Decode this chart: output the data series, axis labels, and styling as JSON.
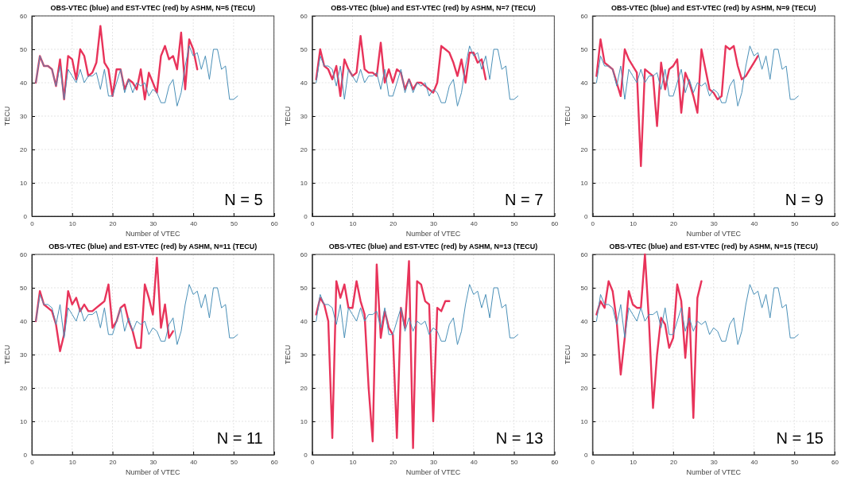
{
  "chart_data": [
    {
      "type": "line",
      "title": "OBS-VTEC (blue) and EST-VTEC (red) by ASHM, N=5 (TECU)",
      "xlabel": "Number of VTEC",
      "ylabel": "TECU",
      "xlim": [
        0,
        60
      ],
      "xticks": [
        0,
        10,
        20,
        30,
        40,
        50,
        60
      ],
      "ylim": [
        0,
        60
      ],
      "yticks": [
        0,
        10,
        20,
        30,
        40,
        50,
        60
      ],
      "grid": true,
      "line_style": "solid",
      "annotations": [
        "N = 5"
      ],
      "series": [
        {
          "color": "#4a90b8",
          "x": [
            1,
            2,
            3,
            4,
            5,
            6,
            7,
            8,
            9,
            10,
            11,
            12,
            13,
            14,
            15,
            16,
            17,
            18,
            19,
            20,
            21,
            22,
            23,
            24,
            25,
            26,
            27,
            28,
            29,
            30,
            31,
            32,
            33,
            34,
            35,
            36,
            37,
            38,
            39,
            40,
            41,
            42,
            43,
            44,
            45,
            46,
            47,
            48,
            49,
            50,
            51
          ],
          "values": [
            40,
            48,
            45,
            45,
            44,
            39,
            45,
            35,
            44,
            42,
            40,
            44,
            40,
            42,
            42,
            43,
            38,
            44,
            36,
            36,
            40,
            44,
            37,
            41,
            37,
            40,
            39,
            40,
            36,
            38,
            37,
            34,
            34,
            39,
            41,
            33,
            37,
            45,
            51,
            48,
            49,
            44,
            48,
            41,
            50,
            50,
            44,
            45,
            35,
            35,
            36
          ]
        },
        {
          "color": "#e8335a",
          "x": [
            1,
            2,
            3,
            4,
            5,
            6,
            7,
            8,
            9,
            10,
            11,
            12,
            13,
            14,
            15,
            16,
            17,
            18,
            19,
            20,
            21,
            22,
            23,
            24,
            25,
            26,
            27,
            28,
            29,
            30,
            31,
            32,
            33,
            34,
            35,
            36,
            37,
            38,
            39,
            40,
            41
          ],
          "values": [
            40,
            48,
            45,
            45,
            44,
            39,
            47,
            35,
            48,
            47,
            41,
            50,
            48,
            42,
            43,
            46,
            57,
            46,
            44,
            36,
            44,
            44,
            38,
            41,
            40,
            38,
            44,
            35,
            43,
            40,
            37,
            48,
            51,
            47,
            48,
            44,
            55,
            38,
            53,
            50,
            44
          ]
        }
      ]
    },
    {
      "type": "line",
      "title": "OBS-VTEC (blue) and EST-VTEC (red) by ASHM, N=7 (TECU)",
      "xlabel": "Number of VTEC",
      "ylabel": "TECU",
      "xlim": [
        0,
        60
      ],
      "xticks": [
        0,
        10,
        20,
        30,
        40,
        50,
        60
      ],
      "ylim": [
        0,
        60
      ],
      "yticks": [
        0,
        10,
        20,
        30,
        40,
        50,
        60
      ],
      "grid": true,
      "line_style": "solid",
      "annotations": [
        "N = 7"
      ],
      "series": [
        {
          "color": "#4a90b8",
          "x": [
            1,
            2,
            3,
            4,
            5,
            6,
            7,
            8,
            9,
            10,
            11,
            12,
            13,
            14,
            15,
            16,
            17,
            18,
            19,
            20,
            21,
            22,
            23,
            24,
            25,
            26,
            27,
            28,
            29,
            30,
            31,
            32,
            33,
            34,
            35,
            36,
            37,
            38,
            39,
            40,
            41,
            42,
            43,
            44,
            45,
            46,
            47,
            48,
            49,
            50,
            51
          ],
          "values": [
            40,
            48,
            45,
            45,
            44,
            39,
            45,
            35,
            44,
            42,
            40,
            44,
            40,
            42,
            42,
            43,
            38,
            44,
            36,
            36,
            40,
            44,
            37,
            41,
            37,
            40,
            39,
            40,
            36,
            38,
            37,
            34,
            34,
            39,
            41,
            33,
            37,
            45,
            51,
            48,
            49,
            44,
            48,
            41,
            50,
            50,
            44,
            45,
            35,
            35,
            36
          ]
        },
        {
          "color": "#e8335a",
          "x": [
            1,
            2,
            3,
            4,
            5,
            6,
            7,
            8,
            9,
            10,
            11,
            12,
            13,
            14,
            15,
            16,
            17,
            18,
            19,
            20,
            21,
            22,
            23,
            24,
            25,
            26,
            27,
            28,
            29,
            30,
            31,
            32,
            33,
            34,
            35,
            36,
            37,
            38,
            39,
            40,
            41,
            42,
            43
          ],
          "values": [
            41,
            50,
            45,
            44,
            41,
            45,
            36,
            47,
            44,
            42,
            43,
            54,
            44,
            43,
            43,
            42,
            52,
            40,
            44,
            40,
            44,
            43,
            38,
            41,
            38,
            40,
            40,
            39,
            38,
            37,
            40,
            51,
            50,
            49,
            46,
            42,
            47,
            40,
            49,
            49,
            46,
            47,
            41
          ]
        }
      ]
    },
    {
      "type": "line",
      "title": "OBS-VTEC (blue) and EST-VTEC (red) by ASHM, N=9 (TECU)",
      "xlabel": "Number of VTEC",
      "ylabel": "TECU",
      "xlim": [
        0,
        60
      ],
      "xticks": [
        0,
        10,
        20,
        30,
        40,
        50,
        60
      ],
      "ylim": [
        0,
        60
      ],
      "yticks": [
        0,
        10,
        20,
        30,
        40,
        50,
        60
      ],
      "grid": true,
      "line_style": "solid",
      "annotations": [
        "N = 9"
      ],
      "series": [
        {
          "color": "#4a90b8",
          "x": [
            1,
            2,
            3,
            4,
            5,
            6,
            7,
            8,
            9,
            10,
            11,
            12,
            13,
            14,
            15,
            16,
            17,
            18,
            19,
            20,
            21,
            22,
            23,
            24,
            25,
            26,
            27,
            28,
            29,
            30,
            31,
            32,
            33,
            34,
            35,
            36,
            37,
            38,
            39,
            40,
            41,
            42,
            43,
            44,
            45,
            46,
            47,
            48,
            49,
            50,
            51
          ],
          "values": [
            40,
            48,
            45,
            45,
            44,
            39,
            45,
            35,
            44,
            42,
            40,
            44,
            40,
            42,
            42,
            43,
            38,
            44,
            36,
            36,
            40,
            44,
            37,
            41,
            37,
            40,
            39,
            40,
            36,
            38,
            37,
            34,
            34,
            39,
            41,
            33,
            37,
            45,
            51,
            48,
            49,
            44,
            48,
            41,
            50,
            50,
            44,
            45,
            35,
            35,
            36
          ]
        },
        {
          "color": "#e8335a",
          "x": [
            1,
            2,
            3,
            4,
            5,
            6,
            7,
            8,
            9,
            10,
            11,
            12,
            13,
            14,
            15,
            16,
            17,
            18,
            19,
            20,
            21,
            22,
            23,
            24,
            25,
            26,
            27,
            28,
            29,
            30,
            31,
            32,
            33,
            34,
            35,
            36,
            37,
            38,
            39,
            40,
            41
          ],
          "values": [
            42,
            53,
            46,
            45,
            44,
            40,
            36,
            50,
            47,
            45,
            43,
            15,
            44,
            43,
            42,
            27,
            46,
            38,
            44,
            45,
            47,
            31,
            43,
            40,
            36,
            31,
            50,
            44,
            38,
            37,
            35,
            36,
            51,
            50,
            51,
            45,
            41,
            42,
            44,
            46,
            48
          ]
        }
      ]
    },
    {
      "type": "line",
      "title": "OBS-VTEC (blue) and EST-VTEC (red) by ASHM, N=11 (TECU)",
      "xlabel": "Number of VTEC",
      "ylabel": "TECU",
      "xlim": [
        0,
        60
      ],
      "xticks": [
        0,
        10,
        20,
        30,
        40,
        50,
        60
      ],
      "ylim": [
        0,
        60
      ],
      "yticks": [
        0,
        10,
        20,
        30,
        40,
        50,
        60
      ],
      "grid": true,
      "line_style": "solid",
      "annotations": [
        "N = 11"
      ],
      "series": [
        {
          "color": "#4a90b8",
          "x": [
            1,
            2,
            3,
            4,
            5,
            6,
            7,
            8,
            9,
            10,
            11,
            12,
            13,
            14,
            15,
            16,
            17,
            18,
            19,
            20,
            21,
            22,
            23,
            24,
            25,
            26,
            27,
            28,
            29,
            30,
            31,
            32,
            33,
            34,
            35,
            36,
            37,
            38,
            39,
            40,
            41,
            42,
            43,
            44,
            45,
            46,
            47,
            48,
            49,
            50,
            51
          ],
          "values": [
            40,
            48,
            45,
            45,
            44,
            39,
            45,
            35,
            44,
            42,
            40,
            44,
            40,
            42,
            42,
            43,
            38,
            44,
            36,
            36,
            40,
            44,
            37,
            41,
            37,
            40,
            39,
            40,
            36,
            38,
            37,
            34,
            34,
            39,
            41,
            33,
            37,
            45,
            51,
            48,
            49,
            44,
            48,
            41,
            50,
            50,
            44,
            45,
            35,
            35,
            36
          ]
        },
        {
          "color": "#e8335a",
          "x": [
            1,
            2,
            3,
            4,
            5,
            6,
            7,
            8,
            9,
            10,
            11,
            12,
            13,
            14,
            15,
            16,
            17,
            18,
            19,
            20,
            21,
            22,
            23,
            24,
            25,
            26,
            27,
            28,
            29,
            30,
            31,
            32,
            33,
            34,
            35
          ],
          "values": [
            40,
            49,
            45,
            44,
            43,
            39,
            31,
            36,
            49,
            45,
            47,
            43,
            45,
            43,
            43,
            44,
            45,
            46,
            51,
            38,
            40,
            44,
            45,
            40,
            37,
            32,
            32,
            51,
            47,
            42,
            59,
            38,
            45,
            35,
            37
          ]
        }
      ]
    },
    {
      "type": "line",
      "title": "OBS-VTEC (blue) and EST-VTEC (red) by ASHM, N=13 (TECU)",
      "xlabel": "Number of VTEC",
      "ylabel": "TECU",
      "xlim": [
        0,
        60
      ],
      "xticks": [
        0,
        10,
        20,
        30,
        40,
        50,
        60
      ],
      "ylim": [
        0,
        60
      ],
      "yticks": [
        0,
        10,
        20,
        30,
        40,
        50,
        60
      ],
      "grid": true,
      "line_style": "solid",
      "annotations": [
        "N = 13"
      ],
      "series": [
        {
          "color": "#4a90b8",
          "x": [
            1,
            2,
            3,
            4,
            5,
            6,
            7,
            8,
            9,
            10,
            11,
            12,
            13,
            14,
            15,
            16,
            17,
            18,
            19,
            20,
            21,
            22,
            23,
            24,
            25,
            26,
            27,
            28,
            29,
            30,
            31,
            32,
            33,
            34,
            35,
            36,
            37,
            38,
            39,
            40,
            41,
            42,
            43,
            44,
            45,
            46,
            47,
            48,
            49,
            50,
            51
          ],
          "values": [
            40,
            48,
            45,
            45,
            44,
            39,
            45,
            35,
            44,
            42,
            40,
            44,
            40,
            42,
            42,
            43,
            38,
            44,
            36,
            36,
            40,
            44,
            37,
            41,
            37,
            40,
            39,
            40,
            36,
            38,
            37,
            34,
            34,
            39,
            41,
            33,
            37,
            45,
            51,
            48,
            49,
            44,
            48,
            41,
            50,
            50,
            44,
            45,
            35,
            35,
            36
          ]
        },
        {
          "color": "#e8335a",
          "x": [
            1,
            2,
            3,
            4,
            5,
            6,
            7,
            8,
            9,
            10,
            11,
            12,
            13,
            14,
            15,
            16,
            17,
            18,
            19,
            20,
            21,
            22,
            23,
            24,
            25,
            26,
            27,
            28,
            29,
            30,
            31,
            32,
            33,
            34
          ],
          "values": [
            42,
            47,
            45,
            40,
            5,
            52,
            47,
            51,
            44,
            44,
            52,
            46,
            42,
            20,
            4,
            57,
            35,
            43,
            38,
            36,
            5,
            44,
            38,
            58,
            2,
            52,
            51,
            46,
            45,
            10,
            44,
            43,
            46,
            46
          ]
        }
      ]
    },
    {
      "type": "line",
      "title": "OBS-VTEC (blue) and EST-VTEC (red) by ASHM, N=15 (TECU)",
      "xlabel": "Number of VTEC",
      "ylabel": "TECU",
      "xlim": [
        0,
        60
      ],
      "xticks": [
        0,
        10,
        20,
        30,
        40,
        50,
        60
      ],
      "ylim": [
        0,
        60
      ],
      "yticks": [
        0,
        10,
        20,
        30,
        40,
        50,
        60
      ],
      "grid": true,
      "line_style": "solid",
      "annotations": [
        "N = 15"
      ],
      "series": [
        {
          "color": "#4a90b8",
          "x": [
            1,
            2,
            3,
            4,
            5,
            6,
            7,
            8,
            9,
            10,
            11,
            12,
            13,
            14,
            15,
            16,
            17,
            18,
            19,
            20,
            21,
            22,
            23,
            24,
            25,
            26,
            27,
            28,
            29,
            30,
            31,
            32,
            33,
            34,
            35,
            36,
            37,
            38,
            39,
            40,
            41,
            42,
            43,
            44,
            45,
            46,
            47,
            48,
            49,
            50,
            51
          ],
          "values": [
            40,
            48,
            45,
            45,
            44,
            39,
            45,
            35,
            44,
            42,
            40,
            44,
            40,
            42,
            42,
            43,
            38,
            44,
            36,
            36,
            40,
            44,
            37,
            41,
            37,
            40,
            39,
            40,
            36,
            38,
            37,
            34,
            34,
            39,
            41,
            33,
            37,
            45,
            51,
            48,
            49,
            44,
            48,
            41,
            50,
            50,
            44,
            45,
            35,
            35,
            36
          ]
        },
        {
          "color": "#e8335a",
          "x": [
            1,
            2,
            3,
            4,
            5,
            6,
            7,
            8,
            9,
            10,
            11,
            12,
            13,
            14,
            15,
            16,
            17,
            18,
            19,
            20,
            21,
            22,
            23,
            24,
            25,
            26,
            27
          ],
          "values": [
            42,
            46,
            44,
            52,
            49,
            40,
            24,
            35,
            49,
            45,
            44,
            44,
            60,
            40,
            14,
            30,
            41,
            39,
            32,
            35,
            51,
            46,
            29,
            44,
            11,
            47,
            52
          ]
        }
      ]
    }
  ]
}
